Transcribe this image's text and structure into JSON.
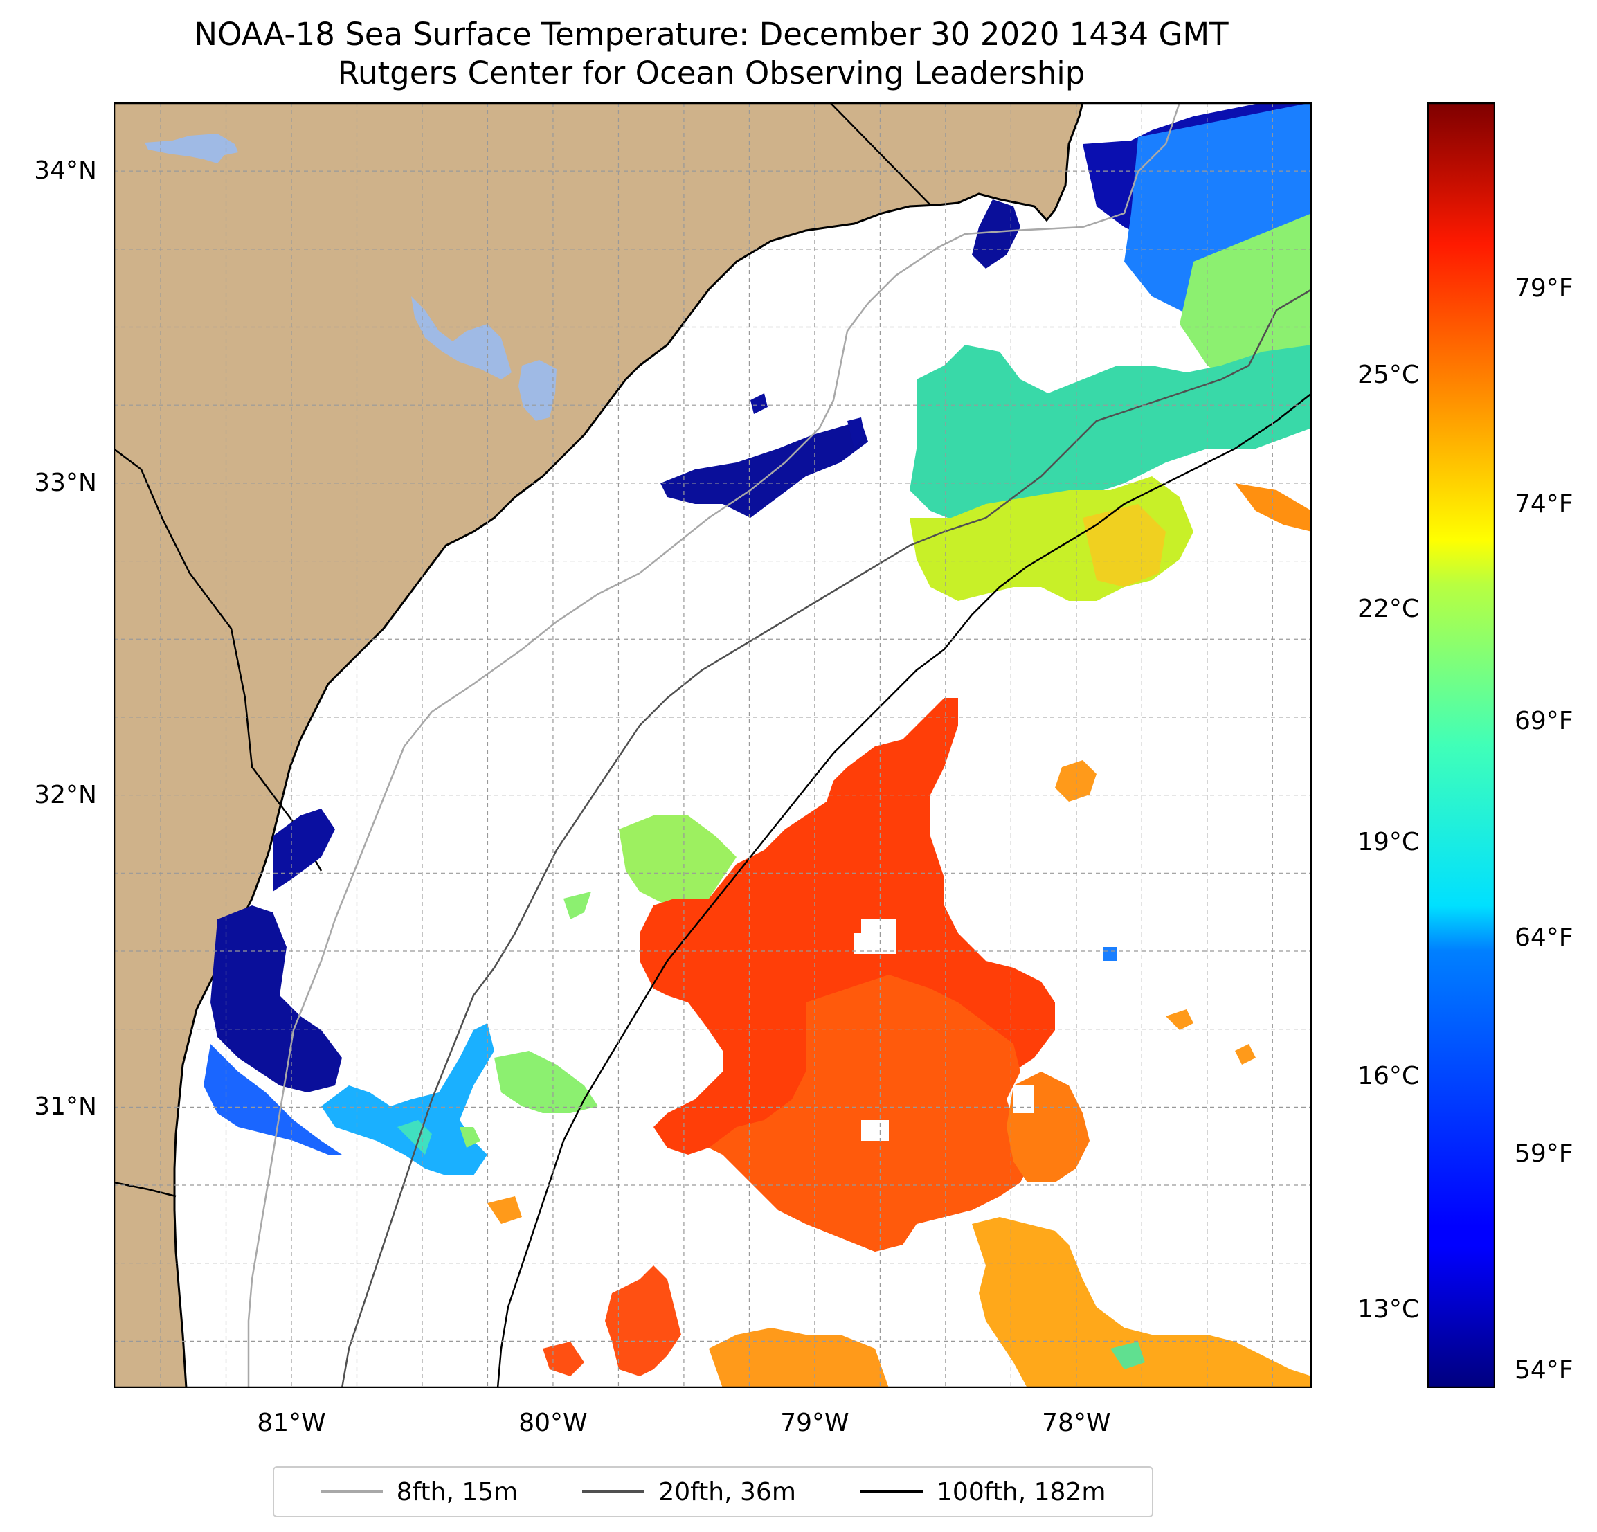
{
  "title": "NOAA-18 Sea Surface Temperature: December 30 2020 1434 GMT",
  "subtitle": "Rutgers Center for Ocean Observing Leadership",
  "map": {
    "lat_range": [
      30.1,
      34.22
    ],
    "lon_range": [
      -81.68,
      -77.1
    ],
    "lat_ticks": [
      {
        "value": 34,
        "label": "34°N"
      },
      {
        "value": 33,
        "label": "33°N"
      },
      {
        "value": 32,
        "label": "32°N"
      },
      {
        "value": 31,
        "label": "31°N"
      }
    ],
    "lon_ticks": [
      {
        "value": -81,
        "label": "81°W"
      },
      {
        "value": -80,
        "label": "80°W"
      },
      {
        "value": -79,
        "label": "79°W"
      },
      {
        "value": -78,
        "label": "78°W"
      }
    ],
    "grid": true,
    "land_color": "#cfb28a",
    "lake_color": "#9fbae5"
  },
  "colorbar": {
    "colormap": "jet",
    "celsius_range": [
      12.0,
      28.5
    ],
    "celsius_ticks": [
      {
        "value": 25,
        "label": "25°C"
      },
      {
        "value": 22,
        "label": "22°C"
      },
      {
        "value": 19,
        "label": "19°C"
      },
      {
        "value": 16,
        "label": "16°C"
      },
      {
        "value": 13,
        "label": "13°C"
      }
    ],
    "fahrenheit_ticks": [
      {
        "value": 79,
        "label": "79°F"
      },
      {
        "value": 74,
        "label": "74°F"
      },
      {
        "value": 69,
        "label": "69°F"
      },
      {
        "value": 64,
        "label": "64°F"
      },
      {
        "value": 59,
        "label": "59°F"
      },
      {
        "value": 54,
        "label": "54°F"
      }
    ]
  },
  "legend": {
    "items": [
      {
        "label": "8fth, 15m",
        "color": "#a8a8a8"
      },
      {
        "label": "20fth, 36m",
        "color": "#505050"
      },
      {
        "label": "100fth, 182m",
        "color": "#000000"
      }
    ]
  }
}
